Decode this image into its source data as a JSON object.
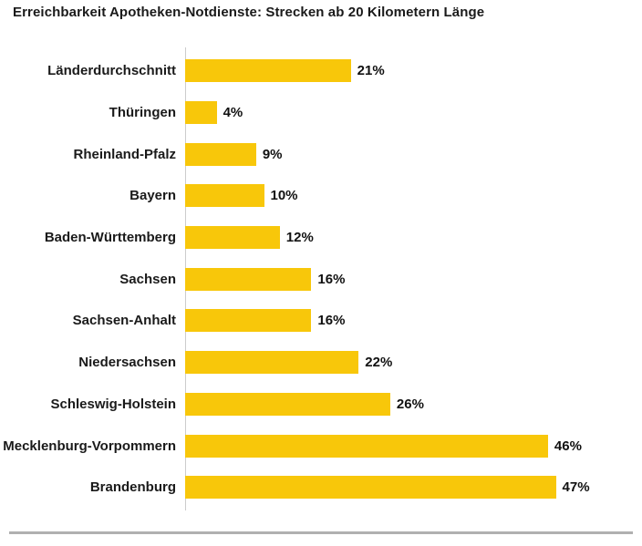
{
  "chart_data": {
    "type": "bar",
    "orientation": "horizontal",
    "title": "Erreichbarkeit Apotheken-Notdienste: Strecken ab 20 Kilometern Länge",
    "categories": [
      "Länderdurchschnitt",
      "Thüringen",
      "Rheinland-Pfalz",
      "Bayern",
      "Baden-Württemberg",
      "Sachsen",
      "Sachsen-Anhalt",
      "Niedersachsen",
      "Schleswig-Holstein",
      "Mecklenburg-Vorpommern",
      "Brandenburg"
    ],
    "values": [
      21,
      4,
      9,
      10,
      12,
      16,
      16,
      22,
      26,
      46,
      47
    ],
    "value_labels": [
      "21%",
      "4%",
      "9%",
      "10%",
      "12%",
      "16%",
      "16%",
      "22%",
      "26%",
      "46%",
      "47%"
    ],
    "unit": "%",
    "xlim": [
      0,
      50
    ],
    "grid": false,
    "legend": false,
    "bar_color": "#f8c70a",
    "axis_line_color": "#cccccc",
    "divider_color": "#b0b0b0",
    "title_color": "#1a1a1a"
  }
}
